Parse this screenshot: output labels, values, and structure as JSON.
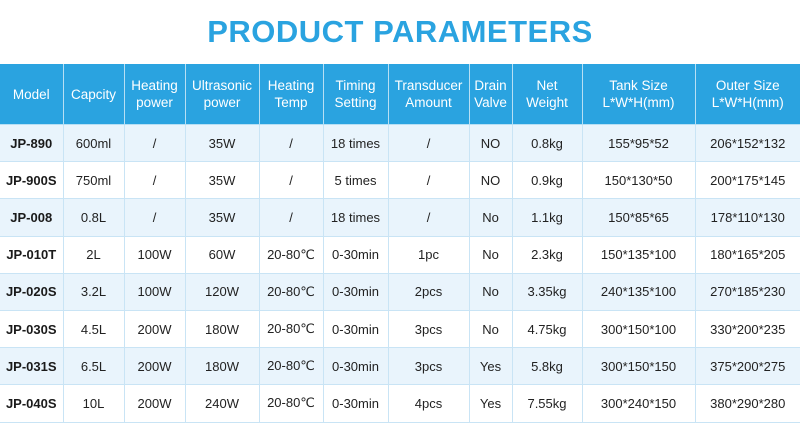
{
  "title": "PRODUCT PARAMETERS",
  "colors": {
    "accent": "#2aa3e0",
    "row_alt": "#e9f4fc"
  },
  "table": {
    "headers": [
      [
        "Model"
      ],
      [
        "Capcity"
      ],
      [
        "Heating",
        "power"
      ],
      [
        "Ultrasonic",
        "power"
      ],
      [
        "Heating",
        "Temp"
      ],
      [
        "Timing",
        "Setting"
      ],
      [
        "Transducer",
        "Amount"
      ],
      [
        "Drain",
        "Valve"
      ],
      [
        "Net",
        "Weight"
      ],
      [
        "Tank Size",
        "L*W*H(mm)"
      ],
      [
        "Outer Size",
        "L*W*H(mm)"
      ]
    ],
    "rows": [
      [
        "JP-890",
        "600ml",
        "/",
        "35W",
        "/",
        "18 times",
        "/",
        "NO",
        "0.8kg",
        "155*95*52",
        "206*152*132"
      ],
      [
        "JP-900S",
        "750ml",
        "/",
        "35W",
        "/",
        "5 times",
        "/",
        "NO",
        "0.9kg",
        "150*130*50",
        "200*175*145"
      ],
      [
        "JP-008",
        "0.8L",
        "/",
        "35W",
        "/",
        "18 times",
        "/",
        "No",
        "1.1kg",
        "150*85*65",
        "178*110*130"
      ],
      [
        "JP-010T",
        "2L",
        "100W",
        "60W",
        "20-80℃",
        "0-30min",
        "1pc",
        "No",
        "2.3kg",
        "150*135*100",
        "180*165*205"
      ],
      [
        "JP-020S",
        "3.2L",
        "100W",
        "120W",
        "20-80℃",
        "0-30min",
        "2pcs",
        "No",
        "3.35kg",
        "240*135*100",
        "270*185*230"
      ],
      [
        "JP-030S",
        "4.5L",
        "200W",
        "180W",
        "20-80℃",
        "0-30min",
        "3pcs",
        "No",
        "4.75kg",
        "300*150*100",
        "330*200*235"
      ],
      [
        "JP-031S",
        "6.5L",
        "200W",
        "180W",
        "20-80℃",
        "0-30min",
        "3pcs",
        "Yes",
        "5.8kg",
        "300*150*150",
        "375*200*275"
      ],
      [
        "JP-040S",
        "10L",
        "200W",
        "240W",
        "20-80℃",
        "0-30min",
        "4pcs",
        "Yes",
        "7.55kg",
        "300*240*150",
        "380*290*280"
      ]
    ]
  }
}
